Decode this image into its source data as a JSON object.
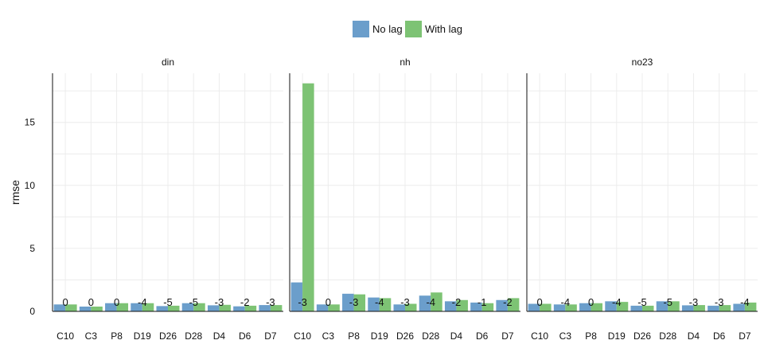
{
  "chart_data": {
    "type": "bar",
    "ylabel": "rmse",
    "xlabel": "",
    "ylim": [
      0,
      18.9
    ],
    "yticks": [
      0,
      5,
      10,
      15
    ],
    "grid": true,
    "legend_position": "top-center",
    "categories": [
      "C10",
      "C3",
      "P8",
      "D19",
      "D26",
      "D28",
      "D4",
      "D6",
      "D7"
    ],
    "series": [
      {
        "name": "No lag",
        "color": "#6b9ecb"
      },
      {
        "name": "With lag",
        "color": "#7dc374"
      }
    ],
    "panels": [
      {
        "title": "din",
        "no_lag": [
          0.55,
          0.38,
          0.65,
          0.65,
          0.42,
          0.65,
          0.48,
          0.4,
          0.5
        ],
        "with_lag": [
          0.55,
          0.38,
          0.65,
          0.65,
          0.45,
          0.65,
          0.52,
          0.45,
          0.5
        ],
        "lag_labels": [
          "0",
          "0",
          "0",
          "-4",
          "-5",
          "-5",
          "-3",
          "-2",
          "-3"
        ]
      },
      {
        "title": "nh",
        "no_lag": [
          2.3,
          0.55,
          1.4,
          1.1,
          0.55,
          1.25,
          0.8,
          0.7,
          0.9
        ],
        "with_lag": [
          18.1,
          0.55,
          1.35,
          1.05,
          0.6,
          1.5,
          0.9,
          0.65,
          1.05
        ],
        "lag_labels": [
          "-3",
          "0",
          "-3",
          "-4",
          "-3",
          "-4",
          "-2",
          "-1",
          "-2"
        ]
      },
      {
        "title": "no23",
        "no_lag": [
          0.6,
          0.55,
          0.65,
          0.8,
          0.45,
          0.8,
          0.48,
          0.45,
          0.6
        ],
        "with_lag": [
          0.6,
          0.55,
          0.65,
          0.75,
          0.45,
          0.8,
          0.5,
          0.5,
          0.7
        ],
        "lag_labels": [
          "0",
          "-4",
          "0",
          "-4",
          "-5",
          "-5",
          "-3",
          "-3",
          "-4"
        ]
      }
    ]
  }
}
